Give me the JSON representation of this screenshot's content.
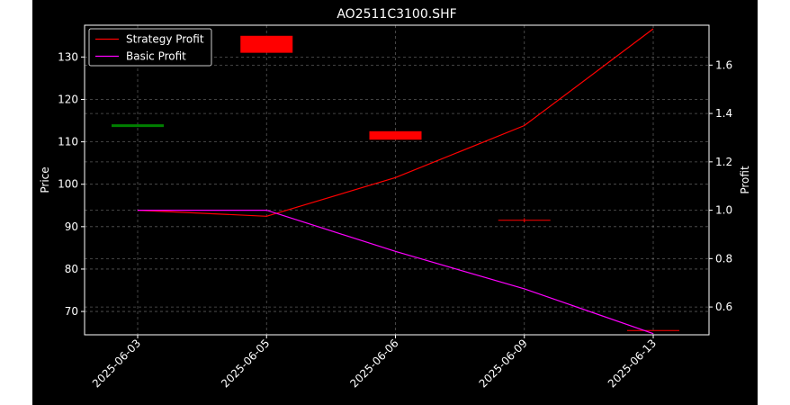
{
  "chart_data": {
    "type": "line",
    "title": "AO2511C3100.SHF",
    "xlabel": "",
    "ylabel_left": "Price",
    "ylabel_right": "Profit",
    "categories": [
      "2025-06-03",
      "2025-06-05",
      "2025-06-06",
      "2025-06-09",
      "2025-06-13"
    ],
    "ylim_left": [
      64.5,
      137.5
    ],
    "yticks_left": [
      70,
      80,
      90,
      100,
      110,
      120,
      130
    ],
    "ylim_right": [
      0.485,
      1.765
    ],
    "yticks_right": [
      0.6,
      0.8,
      1.0,
      1.2,
      1.4,
      1.6
    ],
    "grid": true,
    "legend_position": "top-left",
    "candles": [
      {
        "x": "2025-06-03",
        "open": 113.8,
        "close": 113.8,
        "high": 113.8,
        "low": 113.8,
        "color": "#008000"
      },
      {
        "x": "2025-06-05",
        "open": 135.0,
        "close": 131.0,
        "high": 135.0,
        "low": 131.0,
        "color": "#ff0000"
      },
      {
        "x": "2025-06-06",
        "open": 112.5,
        "close": 110.5,
        "high": 112.5,
        "low": 110.5,
        "color": "#ff0000"
      },
      {
        "x": "2025-06-09",
        "open": 91.5,
        "close": 91.5,
        "high": 92.0,
        "low": 91.0,
        "color": "#ff0000"
      },
      {
        "x": "2025-06-13",
        "open": 65.5,
        "close": 65.5,
        "high": 65.5,
        "low": 65.5,
        "color": "#ff0000"
      }
    ],
    "series": [
      {
        "name": "Strategy Profit",
        "color": "#ff0000",
        "values": [
          1.0,
          0.975,
          1.135,
          1.35,
          1.75
        ]
      },
      {
        "name": "Basic Profit",
        "color": "#ff00ff",
        "values": [
          1.0,
          1.0,
          0.83,
          0.675,
          0.49
        ]
      }
    ]
  }
}
